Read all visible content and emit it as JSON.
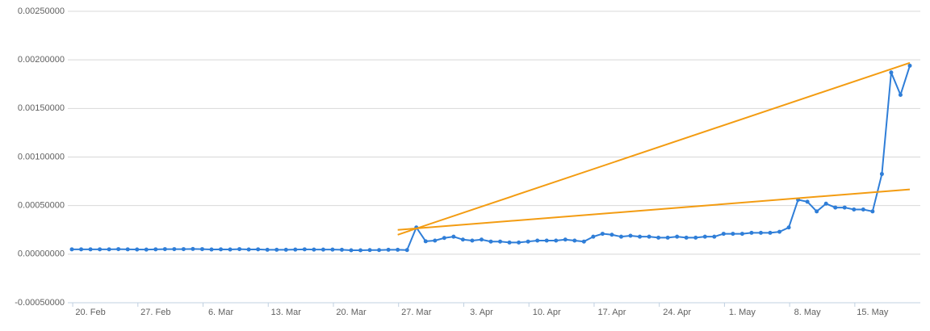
{
  "chart_data": {
    "type": "line",
    "x": [
      "18. Feb",
      "19. Feb",
      "20. Feb",
      "21. Feb",
      "22. Feb",
      "23. Feb",
      "24. Feb",
      "25. Feb",
      "26. Feb",
      "27. Feb",
      "28. Feb",
      "1. Mar",
      "2. Mar",
      "3. Mar",
      "4. Mar",
      "5. Mar",
      "6. Mar",
      "7. Mar",
      "8. Mar",
      "9. Mar",
      "10. Mar",
      "11. Mar",
      "12. Mar",
      "13. Mar",
      "14. Mar",
      "15. Mar",
      "16. Mar",
      "17. Mar",
      "18. Mar",
      "19. Mar",
      "20. Mar",
      "21. Mar",
      "22. Mar",
      "23. Mar",
      "24. Mar",
      "25. Mar",
      "26. Mar",
      "27. Mar",
      "28. Mar",
      "29. Mar",
      "30. Mar",
      "31. Mar",
      "1. Apr",
      "2. Apr",
      "3. Apr",
      "4. Apr",
      "5. Apr",
      "6. Apr",
      "7. Apr",
      "8. Apr",
      "9. Apr",
      "10. Apr",
      "11. Apr",
      "12. Apr",
      "13. Apr",
      "14. Apr",
      "15. Apr",
      "16. Apr",
      "17. Apr",
      "18. Apr",
      "19. Apr",
      "20. Apr",
      "21. Apr",
      "22. Apr",
      "23. Apr",
      "24. Apr",
      "25. Apr",
      "26. Apr",
      "27. Apr",
      "28. Apr",
      "29. Apr",
      "30. Apr",
      "1. May",
      "2. May",
      "3. May",
      "4. May",
      "5. May",
      "6. May",
      "7. May",
      "8. May",
      "9. May",
      "10. May",
      "11. May",
      "12. May",
      "13. May",
      "14. May",
      "15. May",
      "16. May",
      "17. May",
      "18. May",
      "19. May"
    ],
    "series": [
      {
        "color": "#2f7ed8",
        "values": [
          5e-05,
          5e-05,
          5e-05,
          5e-05,
          5e-05,
          5.2e-05,
          5e-05,
          4.8e-05,
          4.7e-05,
          5e-05,
          5.2e-05,
          5.2e-05,
          5.2e-05,
          5.4e-05,
          5.2e-05,
          4.8e-05,
          5e-05,
          4.8e-05,
          5.2e-05,
          4.8e-05,
          5e-05,
          4.5e-05,
          4.5e-05,
          4.5e-05,
          4.7e-05,
          5e-05,
          4.7e-05,
          4.7e-05,
          4.7e-05,
          4.5e-05,
          4e-05,
          4e-05,
          4.2e-05,
          4.2e-05,
          4.5e-05,
          4.5e-05,
          4.2e-05,
          0.000275,
          0.000133,
          0.00014,
          0.000167,
          0.00018,
          0.00015,
          0.00014,
          0.00015,
          0.00013,
          0.00013,
          0.00012,
          0.00012,
          0.00013,
          0.00014,
          0.00014,
          0.00014,
          0.00015,
          0.00014,
          0.00013,
          0.00018,
          0.00021,
          0.0002,
          0.00018,
          0.00019,
          0.00018,
          0.00018,
          0.00017,
          0.00017,
          0.00018,
          0.00017,
          0.00017,
          0.00018,
          0.00018,
          0.00021,
          0.00021,
          0.00021,
          0.00022,
          0.00022,
          0.00022,
          0.00023,
          0.000275,
          0.00056,
          0.00054,
          0.00044,
          0.00052,
          0.00048,
          0.00048,
          0.00046,
          0.00046,
          0.00044,
          0.000825,
          0.00187,
          0.00164,
          0.00194
        ]
      }
    ],
    "trend_lines": [
      {
        "color": "#f39c12",
        "x": [
          "25. Mar",
          "19. May"
        ],
        "values": [
          0.00025,
          0.000667
        ]
      },
      {
        "color": "#f39c12",
        "x": [
          "25. Mar",
          "19. May"
        ],
        "values": [
          0.0002,
          0.00197
        ]
      }
    ],
    "xlim": [
      "18. Feb",
      "19. May"
    ],
    "xticks": [
      "20. Feb",
      "27. Feb",
      "6. Mar",
      "13. Mar",
      "20. Mar",
      "27. Mar",
      "3. Apr",
      "10. Apr",
      "17. Apr",
      "24. Apr",
      "1. May",
      "8. May",
      "15. May"
    ],
    "ylim": [
      -0.0005,
      0.0025
    ],
    "yticks": [
      {
        "value": -0.0005,
        "label": "-0.00050000"
      },
      {
        "value": 0,
        "label": "0.00000000"
      },
      {
        "value": 0.0005,
        "label": "0.00050000"
      },
      {
        "value": 0.001,
        "label": "0.00100000"
      },
      {
        "value": 0.0015,
        "label": "0.00150000"
      },
      {
        "value": 0.002,
        "label": "0.00200000"
      },
      {
        "value": 0.0025,
        "label": "0.00250000"
      }
    ],
    "grid": true
  }
}
